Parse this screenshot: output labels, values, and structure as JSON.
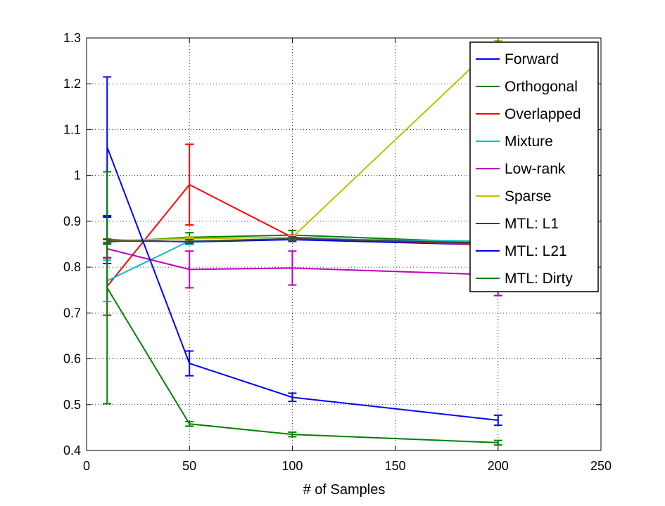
{
  "chart_data": {
    "type": "line",
    "xlabel": "# of Samples",
    "ylabel": "",
    "title": "",
    "xlim": [
      0,
      250
    ],
    "ylim": [
      0.4,
      1.3
    ],
    "xticks": [
      0,
      50,
      100,
      150,
      200,
      250
    ],
    "xtick_labels": [
      "0",
      "50",
      "100",
      "150",
      "200",
      "250"
    ],
    "yticks": [
      0.4,
      0.5,
      0.6,
      0.7,
      0.8,
      0.9,
      1.0,
      1.1,
      1.2,
      1.3
    ],
    "ytick_labels": [
      "0.4",
      "0.5",
      "0.6",
      "0.7",
      "0.8",
      "0.9",
      "1",
      "1.1",
      "1.2",
      "1.3"
    ],
    "grid": true,
    "legend_position": "top-right",
    "series": [
      {
        "name": "Forward",
        "color": "#0000ff",
        "x": [
          10,
          50,
          100,
          200
        ],
        "y": [
          0.86,
          0.855,
          0.86,
          0.848
        ],
        "err": [
          0.052,
          0.004,
          0.004,
          0.004
        ]
      },
      {
        "name": "Orthogonal",
        "color": "#008000",
        "x": [
          10,
          50,
          100,
          200
        ],
        "y": [
          0.855,
          0.865,
          0.87,
          0.853
        ],
        "err": [
          0.005,
          0.01,
          0.01,
          0.004
        ]
      },
      {
        "name": "Overlapped",
        "color": "#ff0000",
        "x": [
          10,
          50,
          100,
          200
        ],
        "y": [
          0.758,
          0.98,
          0.865,
          0.848
        ],
        "err": [
          0.063,
          0.088,
          0.005,
          0.004
        ]
      },
      {
        "name": "Mixture",
        "color": "#00bfbf",
        "x": [
          10,
          50,
          100,
          200
        ],
        "y": [
          0.77,
          0.857,
          0.862,
          0.856
        ],
        "err": [
          0.045,
          0.008,
          0.004,
          0.004
        ]
      },
      {
        "name": "Low-rank",
        "color": "#bf00bf",
        "x": [
          10,
          50,
          100,
          200
        ],
        "y": [
          0.84,
          0.795,
          0.798,
          0.783
        ],
        "err": [
          0.02,
          0.04,
          0.037,
          0.045
        ]
      },
      {
        "name": "Sparse",
        "color": "#bfbf00",
        "x": [
          10,
          50,
          100,
          200
        ],
        "y": [
          0.858,
          0.862,
          0.865,
          1.29
        ],
        "err": [
          0.004,
          0.004,
          0.004,
          0.004
        ]
      },
      {
        "name": "MTL: L1",
        "color": "#404040",
        "x": [
          10,
          50,
          100,
          200
        ],
        "y": [
          0.857,
          0.856,
          0.862,
          0.852
        ],
        "err": [
          0.004,
          0.004,
          0.004,
          0.004
        ]
      },
      {
        "name": "MTL: L21",
        "color": "#0000ff",
        "x": [
          10,
          50,
          100,
          200
        ],
        "y": [
          1.062,
          0.59,
          0.516,
          0.466
        ],
        "err": [
          0.153,
          0.027,
          0.009,
          0.011
        ]
      },
      {
        "name": "MTL: Dirty",
        "color": "#008000",
        "x": [
          10,
          50,
          100,
          200
        ],
        "y": [
          0.755,
          0.458,
          0.435,
          0.417
        ],
        "err": [
          0.253,
          0.005,
          0.005,
          0.005
        ]
      }
    ]
  }
}
